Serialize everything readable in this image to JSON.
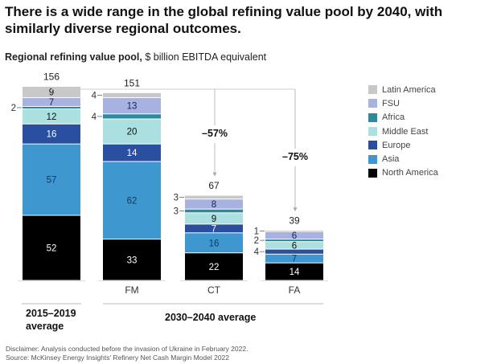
{
  "chart_data": {
    "type": "bar",
    "stacked": true,
    "title": "There is a wide range in the global refining value pool by 2040, with similarly diverse regional outcomes.",
    "subtitle_bold": "Regional refining value pool,",
    "subtitle_rest": " $ billion EBITDA equivalent",
    "categories": [
      "",
      "FM",
      "CT",
      "FA"
    ],
    "totals": [
      156,
      151,
      67,
      39
    ],
    "series": [
      {
        "name": "North America",
        "color": "#000000",
        "values": [
          52,
          33,
          22,
          14
        ]
      },
      {
        "name": "Asia",
        "color": "#3f97cf",
        "values": [
          57,
          62,
          16,
          7
        ]
      },
      {
        "name": "Europe",
        "color": "#2b4fa0",
        "values": [
          16,
          14,
          7,
          4
        ]
      },
      {
        "name": "Middle East",
        "color": "#abdfe0",
        "values": [
          12,
          20,
          9,
          6
        ]
      },
      {
        "name": "Africa",
        "color": "#2d8a9a",
        "values": [
          2,
          4,
          3,
          2
        ]
      },
      {
        "name": "FSU",
        "color": "#a8b2e0",
        "values": [
          7,
          13,
          8,
          6
        ]
      },
      {
        "name": "Latin America",
        "color": "#c8c8c8",
        "values": [
          9,
          4,
          3,
          1
        ]
      }
    ],
    "label_text_colors": {
      "North America": "#ffffff",
      "Asia": "#0c3b5e",
      "Europe": "#ffffff",
      "Middle East": "#111111",
      "Africa": "#111111",
      "FSU": "#1b2266",
      "Latin America": "#111111"
    },
    "annotations": [
      {
        "from": "FM",
        "to": "CT",
        "text": "–57%"
      },
      {
        "from": "",
        "to": "FA",
        "text": "–75%"
      }
    ],
    "groups": [
      {
        "label": "2015–2019\naverage",
        "categories": [
          ""
        ]
      },
      {
        "label": "2030–2040 average",
        "categories": [
          "FM",
          "CT",
          "FA"
        ]
      }
    ],
    "legend_order": [
      "Latin America",
      "FSU",
      "Africa",
      "Middle East",
      "Europe",
      "Asia",
      "North America"
    ],
    "legend_position": "right",
    "ylabel": "$ billion EBITDA equivalent",
    "grid": false
  },
  "footnotes": {
    "disclaimer": "Disclaimer: Analysis conducted before the invasion of Ukraine in February 2022.",
    "source": "Source: McKinsey Energy Insights' Refinery Net Cash Margin Model 2022"
  },
  "groups_text": {
    "historic_line1": "2015–2019",
    "historic_line2": "average",
    "future": "2030–2040 average"
  }
}
